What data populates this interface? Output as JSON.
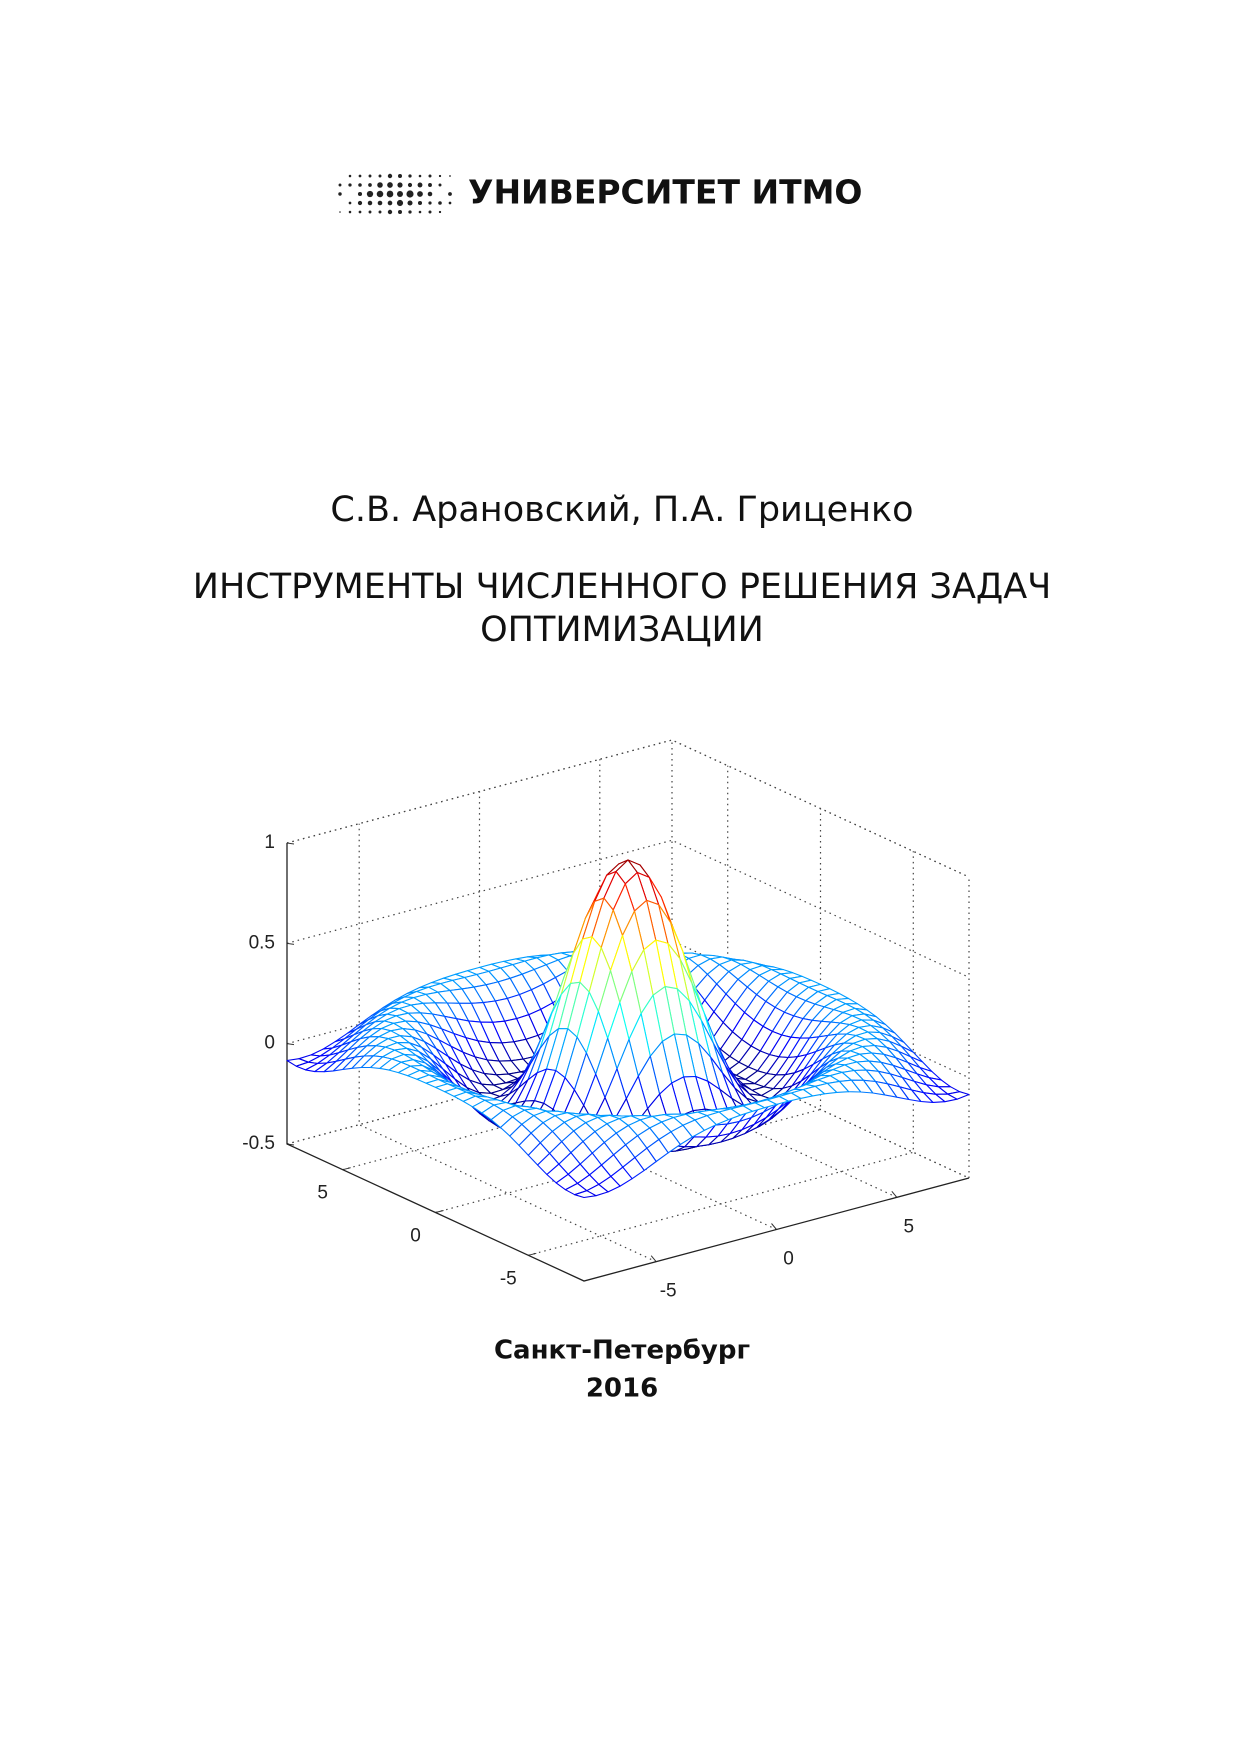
{
  "header": {
    "logo_text": "УНИВЕРСИТЕТ ИТМО"
  },
  "authors": "С.В. Арановский, П.А. Гриценко",
  "title_lines": [
    "ИНСТРУМЕНТЫ ЧИСЛЕННОГО РЕШЕНИЯ ЗАДАЧ",
    "ОПТИМИЗАЦИИ"
  ],
  "chart_data": {
    "type": "surface",
    "xlim": [
      -8,
      8
    ],
    "ylim": [
      -8,
      8
    ],
    "zlim": [
      -0.5,
      1
    ],
    "xticks": [
      -5,
      0,
      5
    ],
    "yticks": [
      -5,
      0,
      5
    ],
    "zticks": [
      -0.5,
      0,
      0.5,
      1
    ],
    "grid": true
  },
  "footer": {
    "city": "Санкт-Петербург",
    "year": "2016"
  }
}
